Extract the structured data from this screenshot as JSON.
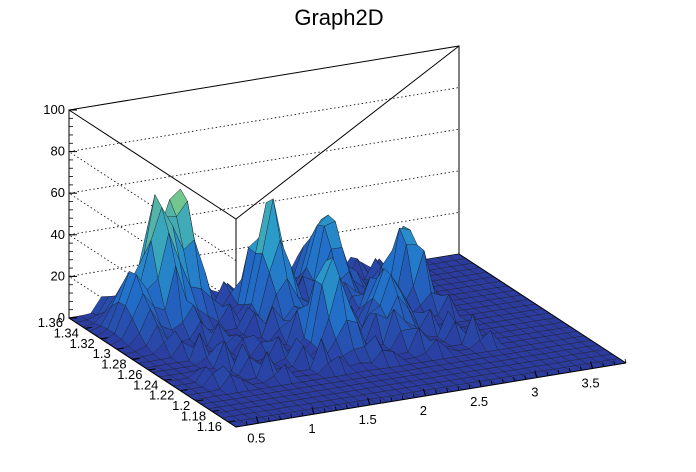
{
  "chart_data": {
    "type": "surface",
    "title": "Graph2D",
    "grid": true,
    "colormap": "viridis-like (blue-green-yellow)",
    "colors": {
      "low": "#2b3b9e",
      "mid": "#2c9ec9",
      "high_mid": "#77c88a",
      "peak": "#f2c836",
      "mesh_line": "#1a1a1a",
      "grid": "#000000"
    },
    "x_axis": {
      "label": "",
      "range": [
        0.3,
        3.8
      ],
      "ticks": [
        "0.5",
        "1",
        "1.5",
        "2",
        "2.5",
        "3",
        "3.5"
      ]
    },
    "y_axis": {
      "label": "",
      "range": [
        1.15,
        1.36
      ],
      "ticks": [
        "1.16",
        "1.18",
        "1.2",
        "1.22",
        "1.24",
        "1.26",
        "1.28",
        "1.3",
        "1.32",
        "1.34",
        "1.36"
      ]
    },
    "z_axis": {
      "label": "",
      "range": [
        0,
        100
      ],
      "ticks": [
        "0",
        "20",
        "40",
        "60",
        "80",
        "100"
      ]
    },
    "peaks": [
      {
        "x": 0.9,
        "y": 1.33,
        "z": 60
      },
      {
        "x": 1.15,
        "y": 1.34,
        "z": 56
      },
      {
        "x": 1.75,
        "y": 1.31,
        "z": 52
      },
      {
        "x": 1.85,
        "y": 1.25,
        "z": 40
      },
      {
        "x": 2.4,
        "y": 1.33,
        "z": 42
      },
      {
        "x": 2.45,
        "y": 1.26,
        "z": 30
      },
      {
        "x": 0.6,
        "y": 1.32,
        "z": 30
      },
      {
        "x": 2.9,
        "y": 1.3,
        "z": 36
      }
    ]
  }
}
